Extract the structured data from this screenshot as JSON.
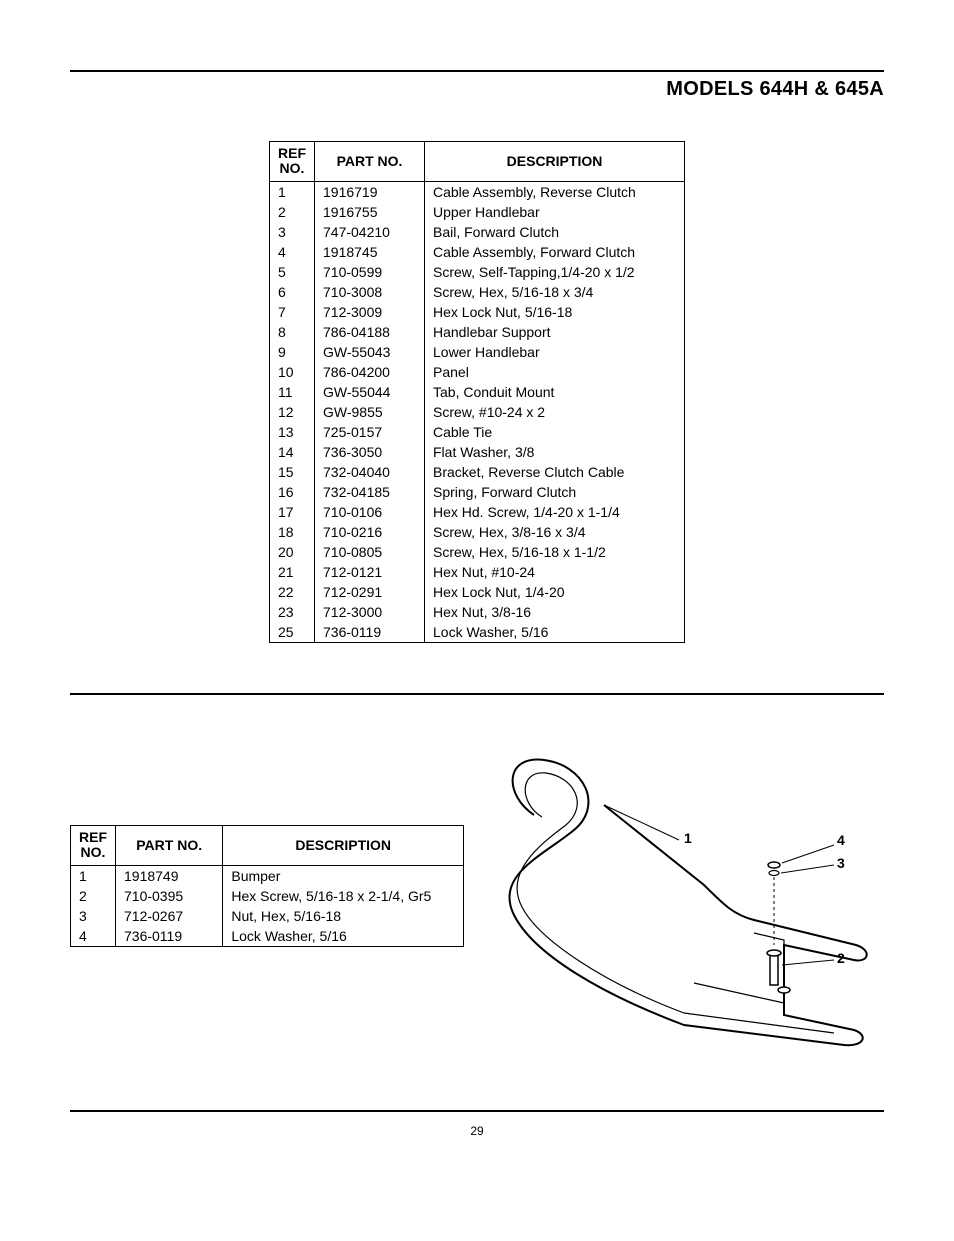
{
  "header": {
    "title": "MODELS 644H & 645A"
  },
  "table1": {
    "headers": {
      "ref": "REF\nNO.",
      "part": "PART NO.",
      "desc": "DESCRIPTION"
    },
    "rows": [
      {
        "ref": "1",
        "part": "1916719",
        "desc": "Cable Assembly, Reverse Clutch"
      },
      {
        "ref": "2",
        "part": "1916755",
        "desc": "Upper Handlebar"
      },
      {
        "ref": "3",
        "part": "747-04210",
        "desc": "Bail, Forward Clutch"
      },
      {
        "ref": "4",
        "part": "1918745",
        "desc": "Cable Assembly, Forward Clutch"
      },
      {
        "ref": "5",
        "part": "710-0599",
        "desc": "Screw, Self-Tapping,1/4-20 x 1/2"
      },
      {
        "ref": "6",
        "part": "710-3008",
        "desc": "Screw, Hex, 5/16-18 x 3/4"
      },
      {
        "ref": "7",
        "part": "712-3009",
        "desc": "Hex Lock Nut, 5/16-18"
      },
      {
        "ref": "8",
        "part": "786-04188",
        "desc": "Handlebar Support"
      },
      {
        "ref": "9",
        "part": "GW-55043",
        "desc": "Lower Handlebar"
      },
      {
        "ref": "10",
        "part": "786-04200",
        "desc": "Panel"
      },
      {
        "ref": "11",
        "part": "GW-55044",
        "desc": "Tab, Conduit Mount"
      },
      {
        "ref": "12",
        "part": "GW-9855",
        "desc": "Screw, #10-24 x 2"
      },
      {
        "ref": "13",
        "part": "725-0157",
        "desc": "Cable Tie"
      },
      {
        "ref": "14",
        "part": "736-3050",
        "desc": "Flat Washer, 3/8"
      },
      {
        "ref": "15",
        "part": "732-04040",
        "desc": "Bracket, Reverse Clutch Cable"
      },
      {
        "ref": "16",
        "part": "732-04185",
        "desc": "Spring, Forward Clutch"
      },
      {
        "ref": "17",
        "part": "710-0106",
        "desc": "Hex Hd. Screw, 1/4-20 x 1-1/4"
      },
      {
        "ref": "18",
        "part": "710-0216",
        "desc": "Screw, Hex, 3/8-16 x 3/4"
      },
      {
        "ref": "20",
        "part": "710-0805",
        "desc": "Screw, Hex, 5/16-18 x 1-1/2"
      },
      {
        "ref": "21",
        "part": "712-0121",
        "desc": "Hex Nut, #10-24"
      },
      {
        "ref": "22",
        "part": "712-0291",
        "desc": "Hex Lock Nut, 1/4-20"
      },
      {
        "ref": "23",
        "part": "712-3000",
        "desc": "Hex Nut, 3/8-16"
      },
      {
        "ref": "25",
        "part": "736-0119",
        "desc": "Lock Washer, 5/16"
      }
    ]
  },
  "table2": {
    "headers": {
      "ref": "REF\nNO.",
      "part": "PART NO.",
      "desc": "DESCRIPTION"
    },
    "rows": [
      {
        "ref": "1",
        "part": "1918749",
        "desc": "Bumper"
      },
      {
        "ref": "2",
        "part": "710-0395",
        "desc": "Hex Screw, 5/16-18 x 2-1/4, Gr5"
      },
      {
        "ref": "3",
        "part": "712-0267",
        "desc": "Nut, Hex, 5/16-18"
      },
      {
        "ref": "4",
        "part": "736-0119",
        "desc": "Lock Washer, 5/16"
      }
    ]
  },
  "diagram": {
    "callouts": [
      "1",
      "2",
      "3",
      "4"
    ],
    "stroke": "#000000",
    "fill": "#ffffff",
    "stroke_width": 2
  },
  "page_number": "29",
  "style": {
    "rule_color": "#000000",
    "text_color": "#000000",
    "bg_color": "#ffffff",
    "header_fontsize": 20,
    "table_fontsize": 14
  }
}
